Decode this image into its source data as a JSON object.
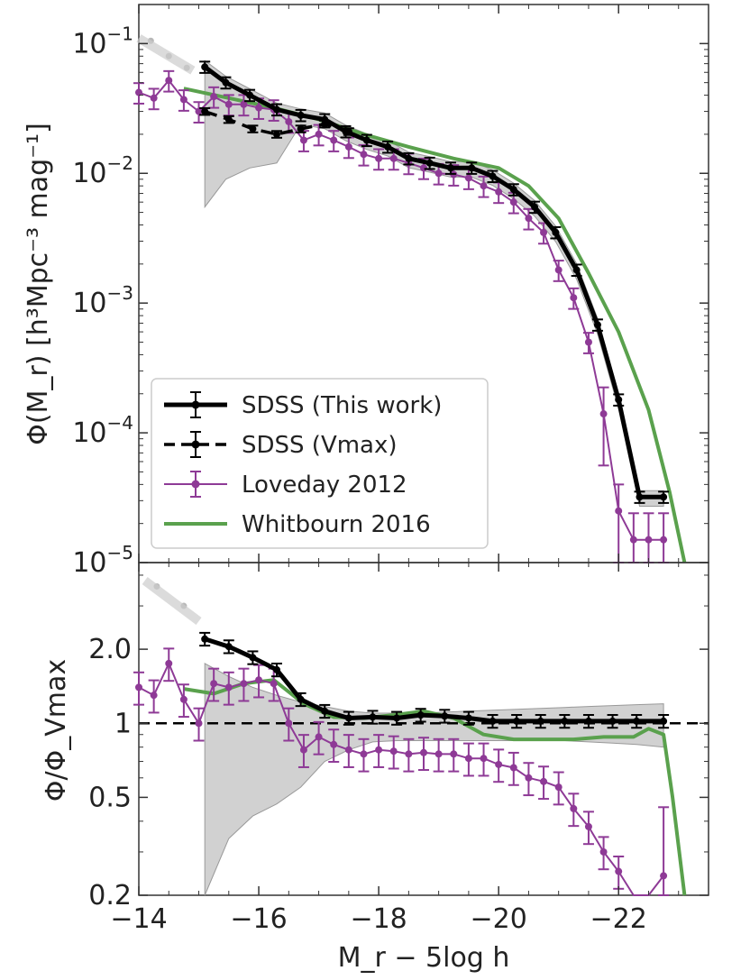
{
  "chart_data": [
    {
      "type": "line",
      "panel": "top",
      "ylabel": "Φ(M_r) [h³Mpc⁻³ mag⁻¹]",
      "yscale": "log",
      "ylim": [
        1e-05,
        0.2
      ],
      "xlim": [
        -14,
        -23.5
      ],
      "x_inverted": true,
      "ytick_labels": [
        {
          "value": 0.1,
          "base": "10",
          "exp": "−1"
        },
        {
          "value": 0.01,
          "base": "10",
          "exp": "−2"
        },
        {
          "value": 0.001,
          "base": "10",
          "exp": "−3"
        },
        {
          "value": 0.0001,
          "base": "10",
          "exp": "−4"
        },
        {
          "value": 1e-05,
          "base": "10",
          "exp": "−5"
        }
      ],
      "legend": {
        "placement": "lower-left",
        "entries": [
          {
            "label": "SDSS (This work)",
            "style": "solid-errorbar",
            "color": "#000000"
          },
          {
            "label": "SDSS (Vmax)",
            "style": "dashed-errorbar",
            "color": "#000000"
          },
          {
            "label": "Loveday 2012",
            "style": "errorbar",
            "color": "#8e3a96"
          },
          {
            "label": "Whitbourn 2016",
            "style": "line",
            "color": "#5aa14d"
          }
        ]
      },
      "series": [
        {
          "name": "SDSS (This work)",
          "color": "#000000",
          "x": [
            -15.1,
            -15.45,
            -15.85,
            -16.3,
            -16.7,
            -17.1,
            -17.45,
            -17.8,
            -18.15,
            -18.5,
            -18.85,
            -19.2,
            -19.55,
            -19.9,
            -20.25,
            -20.6,
            -20.95,
            -21.3,
            -21.65,
            -22.0,
            -22.35,
            -22.75
          ],
          "y": [
            0.066,
            0.05,
            0.04,
            0.031,
            0.028,
            0.026,
            0.021,
            0.018,
            0.016,
            0.013,
            0.012,
            0.011,
            0.011,
            0.0095,
            0.0075,
            0.0055,
            0.0035,
            0.0018,
            0.00068,
            0.00018,
            3.2e-05,
            3.2e-05
          ]
        },
        {
          "name": "SDSS (Vmax)",
          "color": "#000000",
          "x": [
            -15.1,
            -15.5,
            -15.9,
            -16.3,
            -16.7,
            -17.1,
            -17.5
          ],
          "y": [
            0.03,
            0.026,
            0.022,
            0.02,
            0.022,
            0.024,
            0.021
          ]
        },
        {
          "name": "Loveday 2012",
          "color": "#8e3a96",
          "x": [
            -14.0,
            -14.25,
            -14.5,
            -14.75,
            -15.0,
            -15.25,
            -15.5,
            -15.75,
            -16.0,
            -16.25,
            -16.5,
            -16.75,
            -17.0,
            -17.25,
            -17.5,
            -17.75,
            -18.0,
            -18.25,
            -18.5,
            -18.75,
            -19.0,
            -19.25,
            -19.5,
            -19.75,
            -20.0,
            -20.25,
            -20.5,
            -20.75,
            -21.0,
            -21.25,
            -21.5,
            -21.75,
            -22.0,
            -22.25,
            -22.5,
            -22.75
          ],
          "y": [
            0.042,
            0.038,
            0.052,
            0.037,
            0.03,
            0.039,
            0.034,
            0.034,
            0.032,
            0.031,
            0.025,
            0.018,
            0.02,
            0.018,
            0.016,
            0.014,
            0.013,
            0.013,
            0.012,
            0.011,
            0.01,
            0.0098,
            0.0092,
            0.008,
            0.0072,
            0.006,
            0.0045,
            0.0035,
            0.0018,
            0.0011,
            0.0005,
            0.00014,
            2.5e-05,
            1.5e-05,
            1.5e-05,
            1.5e-05
          ]
        },
        {
          "name": "Whitbourn 2016",
          "color": "#5aa14d",
          "x": [
            -14.75,
            -15.5,
            -16.25,
            -17.0,
            -17.75,
            -18.5,
            -19.25,
            -20.0,
            -20.5,
            -21.0,
            -21.5,
            -22.0,
            -22.5,
            -22.85,
            -23.1
          ],
          "y": [
            0.045,
            0.038,
            0.032,
            0.026,
            0.02,
            0.016,
            0.013,
            0.011,
            0.008,
            0.0045,
            0.0017,
            0.0006,
            0.00015,
            3.5e-05,
            1e-05
          ]
        }
      ]
    },
    {
      "type": "line",
      "panel": "bottom",
      "xlabel": "M_r − 5log h",
      "ylabel": "Φ/Φ_Vmax",
      "yscale": "log",
      "ylim": [
        0.2,
        4.5
      ],
      "xlim": [
        -14,
        -23.5
      ],
      "x_inverted": true,
      "ytick_labels": [
        {
          "value": 2.0,
          "label": "2.0"
        },
        {
          "value": 1.0,
          "label": "1"
        },
        {
          "value": 0.5,
          "label": "0.5"
        },
        {
          "value": 0.2,
          "label": "0.2"
        }
      ],
      "xtick_labels": [
        {
          "value": -14,
          "label": "−14"
        },
        {
          "value": -16,
          "label": "−16"
        },
        {
          "value": -18,
          "label": "−18"
        },
        {
          "value": -20,
          "label": "−20"
        },
        {
          "value": -22,
          "label": "−22"
        }
      ],
      "reference_line": {
        "y": 1.0,
        "style": "dashed",
        "color": "#000000"
      },
      "series": [
        {
          "name": "SDSS (This work)",
          "color": "#000000",
          "x": [
            -15.1,
            -15.5,
            -15.9,
            -16.3,
            -16.7,
            -17.1,
            -17.5,
            -17.9,
            -18.3,
            -18.7,
            -19.1,
            -19.5,
            -19.9,
            -20.3,
            -20.7,
            -21.1,
            -21.5,
            -21.9,
            -22.3,
            -22.75
          ],
          "y": [
            2.2,
            2.05,
            1.85,
            1.65,
            1.25,
            1.12,
            1.05,
            1.06,
            1.05,
            1.08,
            1.07,
            1.05,
            1.02,
            1.02,
            1.02,
            1.02,
            1.02,
            1.02,
            1.02,
            1.02
          ]
        },
        {
          "name": "Loveday 2012",
          "color": "#8e3a96",
          "x": [
            -14.0,
            -14.25,
            -14.5,
            -14.75,
            -15.0,
            -15.25,
            -15.5,
            -15.75,
            -16.0,
            -16.25,
            -16.5,
            -16.75,
            -17.0,
            -17.25,
            -17.5,
            -17.75,
            -18.0,
            -18.25,
            -18.5,
            -18.75,
            -19.0,
            -19.25,
            -19.5,
            -19.75,
            -20.0,
            -20.25,
            -20.5,
            -20.75,
            -21.0,
            -21.25,
            -21.5,
            -21.75,
            -22.0,
            -22.25,
            -22.5,
            -22.75
          ],
          "y": [
            1.4,
            1.3,
            1.75,
            1.25,
            1.0,
            1.45,
            1.4,
            1.45,
            1.5,
            1.45,
            1.0,
            0.78,
            0.88,
            0.82,
            0.78,
            0.75,
            0.78,
            0.77,
            0.75,
            0.76,
            0.75,
            0.75,
            0.72,
            0.72,
            0.68,
            0.66,
            0.6,
            0.58,
            0.55,
            0.45,
            0.38,
            0.3,
            0.25,
            0.18,
            0.16,
            0.24
          ]
        },
        {
          "name": "Whitbourn 2016",
          "color": "#5aa14d",
          "x": [
            -14.75,
            -15.25,
            -15.75,
            -16.25,
            -16.75,
            -17.25,
            -17.75,
            -18.25,
            -18.75,
            -19.25,
            -19.75,
            -20.25,
            -20.75,
            -21.25,
            -21.75,
            -22.25,
            -22.5,
            -22.75,
            -22.9,
            -23.1
          ],
          "y": [
            1.38,
            1.32,
            1.45,
            1.5,
            1.2,
            1.06,
            1.05,
            1.08,
            1.12,
            1.05,
            0.9,
            0.86,
            0.86,
            0.86,
            0.88,
            0.88,
            0.95,
            0.9,
            0.5,
            0.2
          ]
        }
      ]
    }
  ]
}
